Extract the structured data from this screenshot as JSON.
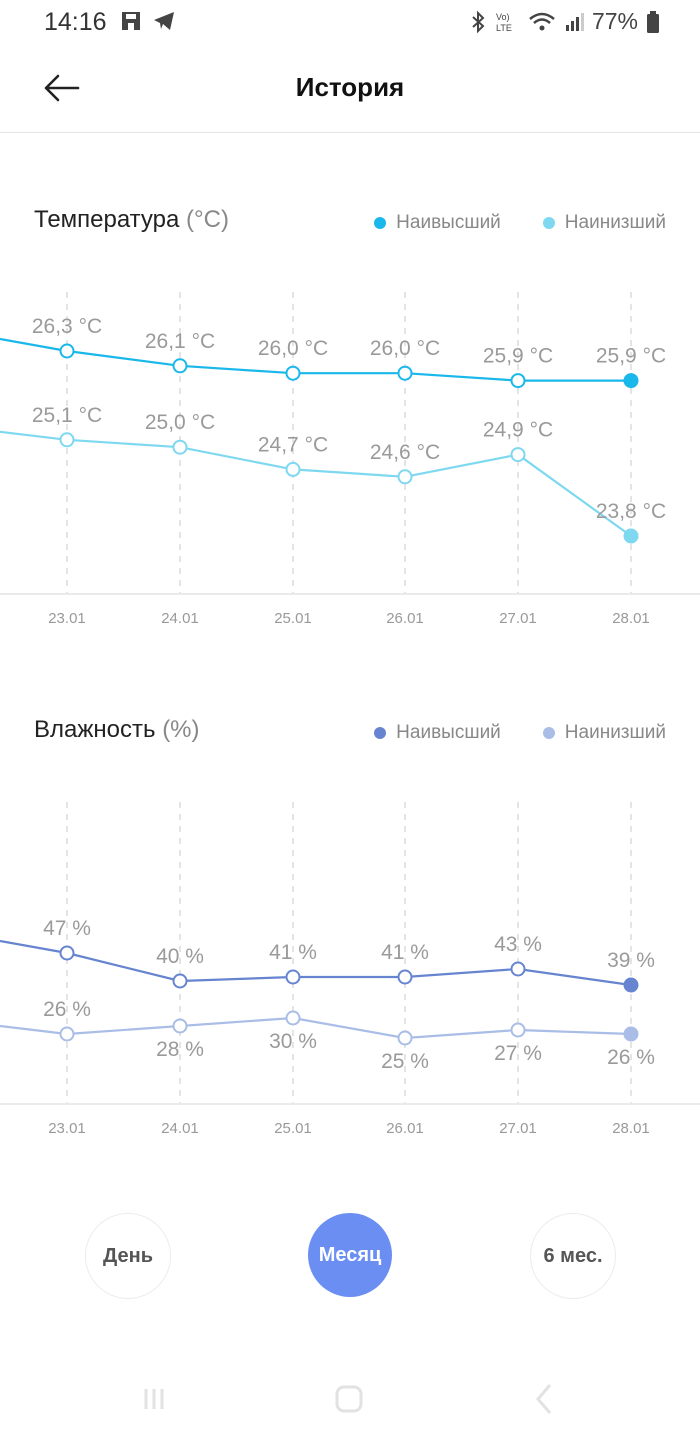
{
  "status": {
    "time": "14:16",
    "battery": "77%"
  },
  "header": {
    "title": "История"
  },
  "temperature": {
    "title": "Температура",
    "unit": "(°C)",
    "legend_high": "Наивысший",
    "legend_low": "Наинизший",
    "color_high": "#1ab8ea",
    "color_low": "#7dd8f0"
  },
  "humidity": {
    "title": "Влажность",
    "unit": "(%)",
    "legend_high": "Наивысший",
    "legend_low": "Наинизший",
    "color_high": "#6684d0",
    "color_low": "#a9bde6"
  },
  "periods": {
    "day": "День",
    "month": "Месяц",
    "six_months": "6 мес.",
    "active": "month"
  },
  "chart_data": [
    {
      "type": "line",
      "title": "Температура (°C)",
      "categories": [
        "23.01",
        "24.01",
        "25.01",
        "26.01",
        "27.01",
        "28.01"
      ],
      "series": [
        {
          "name": "Наивысший",
          "values": [
            26.3,
            26.1,
            26.0,
            26.0,
            25.9,
            25.9
          ],
          "labels": [
            "26,3 °C",
            "26,1 °C",
            "26,0 °C",
            "26,0 °C",
            "25,9 °C",
            "25,9 °C"
          ]
        },
        {
          "name": "Наинизший",
          "values": [
            25.1,
            25.0,
            24.7,
            24.6,
            24.9,
            23.8
          ],
          "labels": [
            "25,1 °C",
            "25,0 °C",
            "24,7 °C",
            "24,6 °C",
            "24,9 °C",
            "23,8 °C"
          ]
        }
      ]
    },
    {
      "type": "line",
      "title": "Влажность (%)",
      "categories": [
        "23.01",
        "24.01",
        "25.01",
        "26.01",
        "27.01",
        "28.01"
      ],
      "series": [
        {
          "name": "Наивысший",
          "values": [
            47,
            40,
            41,
            41,
            43,
            39
          ],
          "labels": [
            "47 %",
            "40 %",
            "41 %",
            "41 %",
            "43 %",
            "39 %"
          ]
        },
        {
          "name": "Наинизший",
          "values": [
            26,
            28,
            30,
            25,
            27,
            26
          ],
          "labels": [
            "26 %",
            "28 %",
            "30 %",
            "25 %",
            "27 %",
            "26 %"
          ]
        }
      ]
    }
  ]
}
